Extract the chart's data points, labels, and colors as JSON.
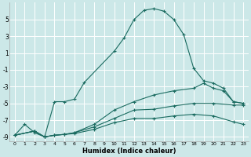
{
  "xlabel": "Humidex (Indice chaleur)",
  "bg_color": "#cce8e8",
  "grid_color": "#ffffff",
  "line_color": "#1a6b60",
  "xlim": [
    -0.5,
    23.5
  ],
  "ylim": [
    -9.5,
    7.0
  ],
  "yticks": [
    5,
    3,
    1,
    -1,
    -3,
    -5,
    -7,
    -9
  ],
  "xticks": [
    0,
    1,
    2,
    3,
    4,
    5,
    6,
    7,
    8,
    9,
    10,
    11,
    12,
    13,
    14,
    15,
    16,
    17,
    18,
    19,
    20,
    21,
    22,
    23
  ],
  "curve1_x": [
    0,
    1,
    2,
    3,
    4,
    5,
    6,
    7,
    10,
    11,
    12,
    13,
    14,
    15,
    16,
    17,
    18,
    19,
    20,
    21,
    22,
    23
  ],
  "curve1_y": [
    -8.8,
    -7.5,
    -8.5,
    -9.0,
    -4.8,
    -4.8,
    -4.5,
    -2.5,
    1.2,
    2.8,
    5.0,
    6.1,
    6.3,
    6.0,
    5.0,
    3.2,
    -0.8,
    -2.3,
    -2.6,
    -3.2,
    -4.8,
    -5.0
  ],
  "curve2_x": [
    0,
    2,
    3,
    4,
    5,
    6,
    8,
    10,
    12,
    14,
    16,
    18,
    19,
    20,
    21,
    22,
    23
  ],
  "curve2_y": [
    -8.8,
    -8.3,
    -9.0,
    -8.8,
    -8.7,
    -8.5,
    -7.5,
    -5.8,
    -4.8,
    -4.0,
    -3.5,
    -3.2,
    -2.6,
    -3.2,
    -3.5,
    -4.8,
    -5.0
  ],
  "curve3_x": [
    0,
    2,
    3,
    4,
    5,
    6,
    8,
    10,
    12,
    14,
    16,
    18,
    20,
    22,
    23
  ],
  "curve3_y": [
    -8.8,
    -8.3,
    -9.0,
    -8.8,
    -8.7,
    -8.5,
    -7.8,
    -6.8,
    -5.8,
    -5.7,
    -5.3,
    -5.0,
    -5.0,
    -5.2,
    -5.2
  ],
  "curve4_x": [
    0,
    2,
    3,
    4,
    5,
    6,
    8,
    10,
    12,
    14,
    16,
    18,
    20,
    22,
    23
  ],
  "curve4_y": [
    -8.8,
    -8.3,
    -9.0,
    -8.8,
    -8.7,
    -8.6,
    -8.1,
    -7.3,
    -6.8,
    -6.8,
    -6.5,
    -6.3,
    -6.5,
    -7.2,
    -7.5
  ]
}
